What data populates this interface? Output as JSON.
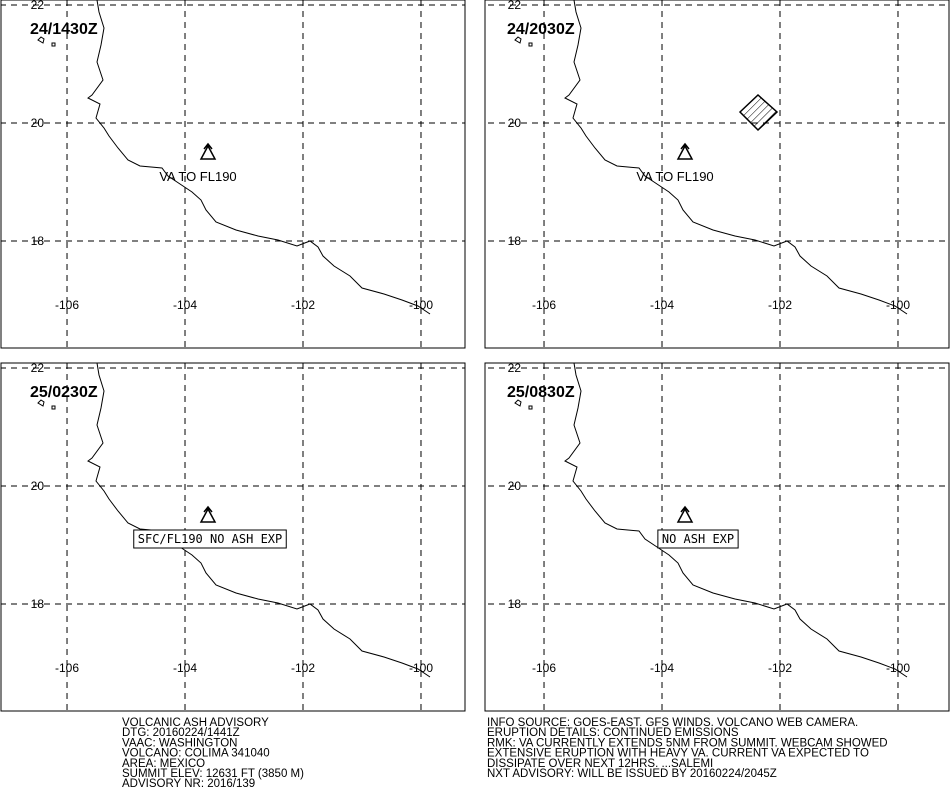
{
  "map": {
    "lon_range": [
      -107.136,
      -99.254
    ],
    "lat_range": [
      16.186,
      22.085
    ],
    "lon_ticks": [
      -106,
      -104,
      -102,
      -100
    ],
    "lat_ticks": [
      22,
      20,
      18
    ]
  },
  "panels": [
    {
      "time": "24/1430Z",
      "annotation": "VA TO FL190"
    },
    {
      "time": "24/2030Z",
      "annotation": "VA TO FL190"
    },
    {
      "time": "25/0230Z",
      "annotation": "SFC/FL190 NO ASH EXP"
    },
    {
      "time": "25/0830Z",
      "annotation": "NO ASH EXP"
    }
  ],
  "advisory_left": [
    "VOLCANIC ASH ADVISORY",
    "DTG: 20160224/1441Z",
    "VAAC: WASHINGTON",
    "VOLCANO: COLIMA 341040",
    "AREA: MEXICO",
    "SUMMIT ELEV: 12631 FT (3850 M)",
    "ADVISORY NR: 2016/139"
  ],
  "advisory_right": [
    "INFO SOURCE: GOES-EAST. GFS WINDS. VOLCANO WEB CAMERA.",
    "ERUPTION DETAILS: CONTINUED EMISSIONS",
    "RMK: VA CURRENTLY EXTENDS 5NM FROM SUMMIT. WEBCAM SHOWED",
    "EXTENSIVE ERUPTION WITH HEAVY VA. CURRENT VA EXPECTED TO",
    "DISSIPATE OVER NEXT 12HRS. ...SALEMI",
    "NXT ADVISORY: WILL BE ISSUED BY 20160224/2045Z"
  ]
}
